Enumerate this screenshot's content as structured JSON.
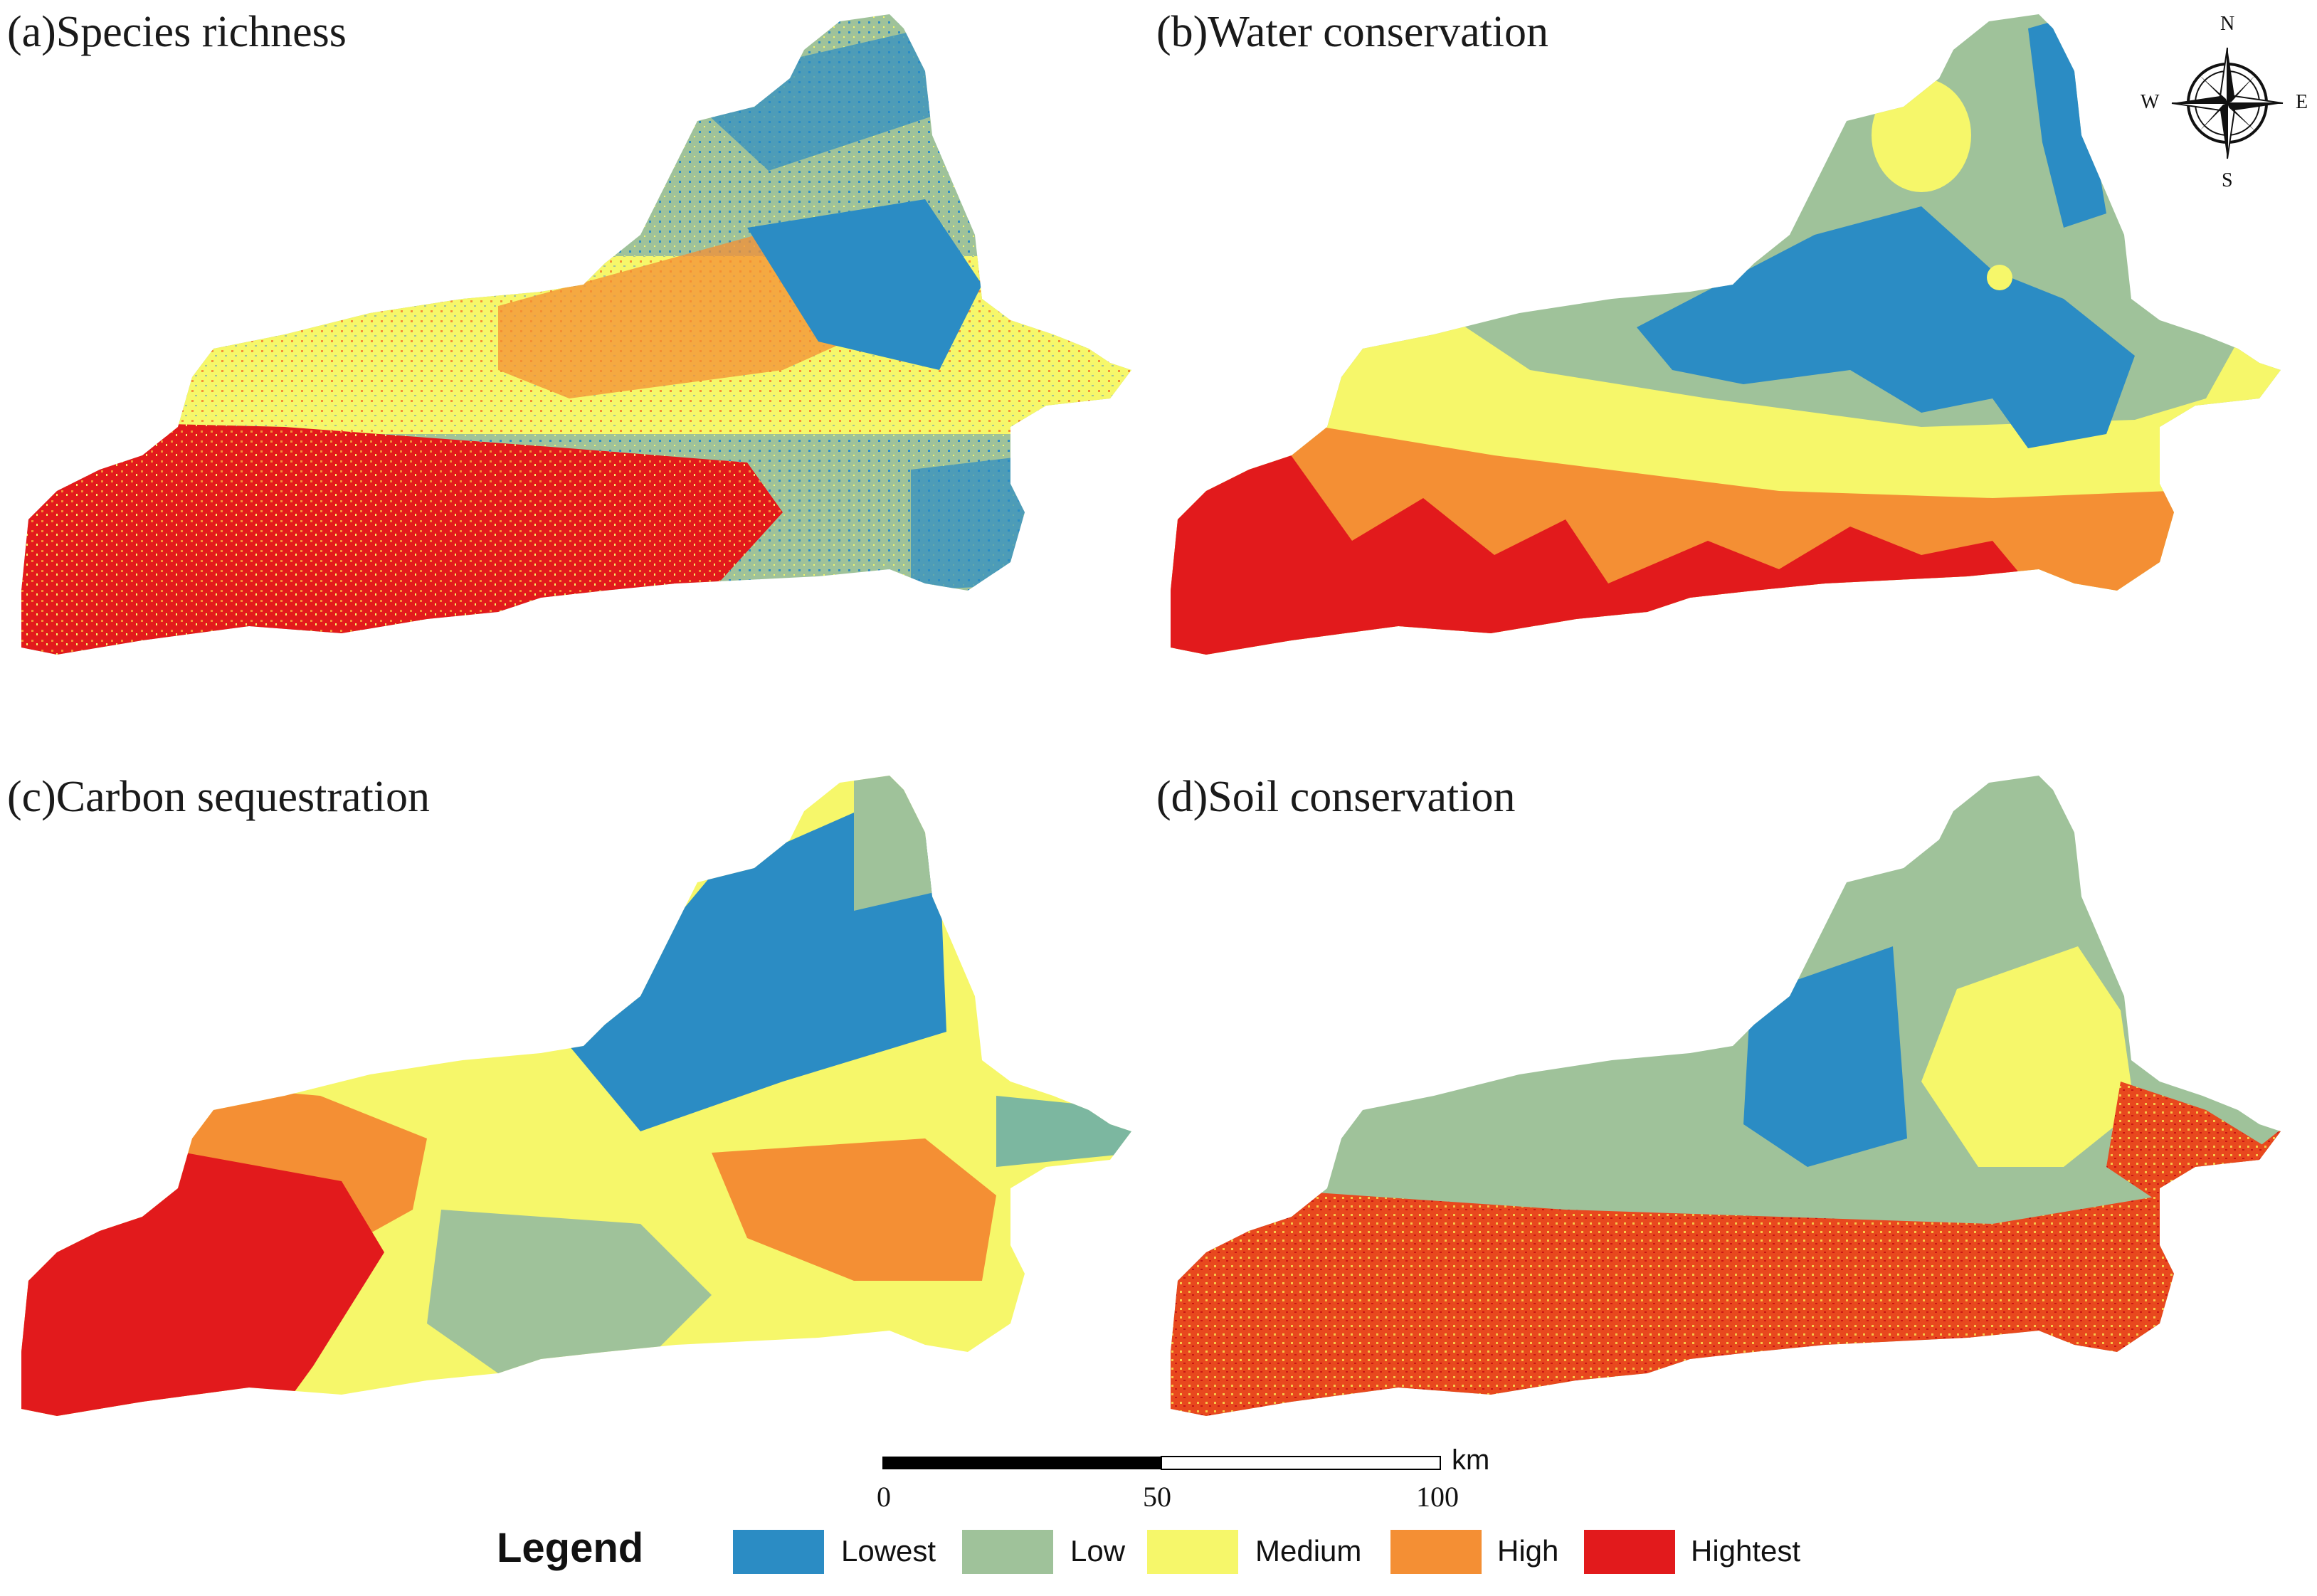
{
  "panels": [
    {
      "id": "a",
      "title": "(a)Species richness"
    },
    {
      "id": "b",
      "title": "(b)Water conservation"
    },
    {
      "id": "c",
      "title": "(c)Carbon sequestration"
    },
    {
      "id": "d",
      "title": "(d)Soil conservation"
    }
  ],
  "compass": {
    "n": "N",
    "s": "S",
    "e": "E",
    "w": "W"
  },
  "scale_bar": {
    "ticks": [
      "0",
      "50",
      "100"
    ],
    "unit": "km"
  },
  "legend": {
    "title": "Legend",
    "classes": [
      {
        "label": "Lowest",
        "color": "#2b8cc4"
      },
      {
        "label": "Low",
        "color": "#9fc29a"
      },
      {
        "label": "Medium",
        "color": "#f6f76a"
      },
      {
        "label": "High",
        "color": "#f48f34"
      },
      {
        "label": "Hightest",
        "color": "#e21a1c"
      }
    ]
  }
}
